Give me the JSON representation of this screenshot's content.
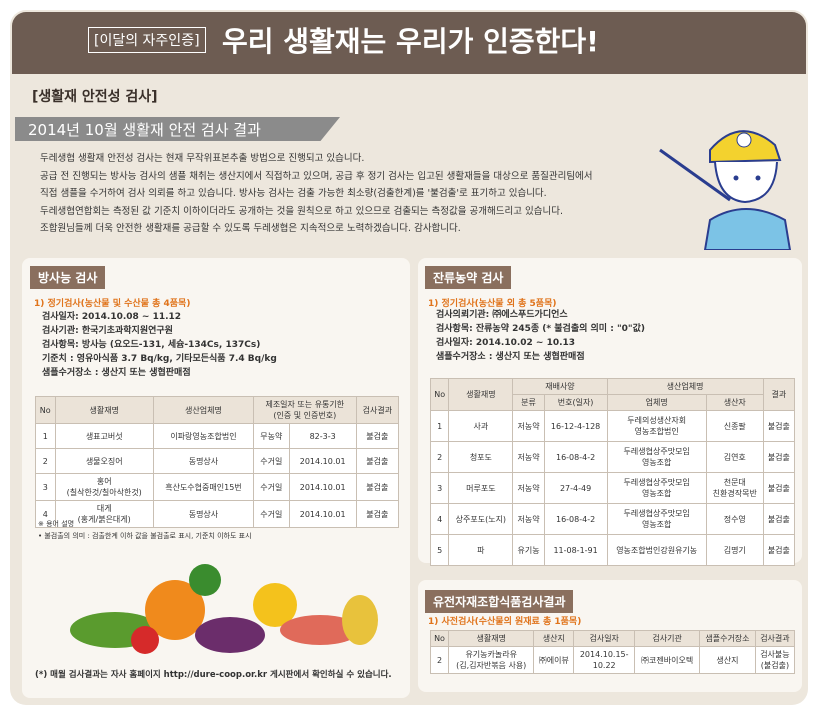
{
  "header": {
    "tag": "[이달의 자주인증]",
    "title": "우리 생활재는 우리가 인증한다!"
  },
  "section": {
    "label": "[생활재 안전성 검사]",
    "title": "2014년 10월 생활재 안전 검사 결과"
  },
  "intro": [
    "두레생협 생활재 안전성 검사는 현재 무작위표본추출 방법으로 진행되고 있습니다.",
    "공급 전 진행되는 방사능 검사의 샘플 채취는 생산지에서 직접하고 있으며, 공급 후 정기 검사는 입고된 생활재들을 대상으로 품질관리팀에서",
    "직접 샘플을 수거하여 검사 의뢰를 하고 있습니다. 방사능 검사는 검출 가능한 최소량(검출한계)를 '불검출'로 표기하고 있습니다.",
    "두레생협연합회는 측정된 값 기준치 이하이더라도 공개하는 것을 원칙으로 하고 있으므로 검출되는 측정값을 공개해드리고 있습니다.",
    "조합원님들께 더욱 안전한 생활재를 공급할 수 있도록 두레생협은 지속적으로 노력하겠습니다. 감사합니다."
  ],
  "radiation": {
    "label": "방사능 검사",
    "subtitle": "1) 정기검사(농산물 및 수산물 총 4품목)",
    "info": [
      "검사일자: 2014.10.08 ~ 11.12",
      "검사기관: 한국기초과학지원연구원",
      "검사항목: 방사능 (요오드-131, 세슘-134Cs, 137Cs)",
      "기준치 : 영유아식품 3.7 Bq/kg, 기타모든식품 7.4 Bq/kg",
      "샘플수거장소 : 생산지 또는 생협판매점"
    ],
    "table": {
      "header": [
        "No",
        "생활재명",
        "생산업체명",
        "제조일자 또는 유통기한\n(인증 및 인증번호)",
        "검사결과"
      ],
      "rows": [
        [
          "1",
          "생표고버섯",
          "이파랑영농조합법인",
          "무농약",
          "82-3-3",
          "불검출"
        ],
        [
          "2",
          "생물오징어",
          "동명상사",
          "수거일",
          "2014.10.01",
          "불검출"
        ],
        [
          "3",
          "홍어\n(칠삭한것/칠아삭한것)",
          "흑산도수협중매인15번",
          "수거일",
          "2014.10.01",
          "불검출"
        ],
        [
          "4",
          "대게\n(홍게/붉은대게)",
          "동명상사",
          "수거일",
          "2014.10.01",
          "불검출"
        ]
      ]
    },
    "notes": [
      "※ 용어 설명",
      "• 불검출의 의미 : 검출한계 이하 값을 불검출로 표시, 기준치 이하도 표시"
    ]
  },
  "pesticide": {
    "label": "잔류농약 검사",
    "subtitle": "1) 정기검사(농산물 외 총 5품목)",
    "info": [
      "검사의뢰기관: ㈜에스푸드가디언스",
      "검사항목: 잔류농약 245종 (* 불검출의 의미 : \"0\"값)",
      "검사일자: 2014.10.02 ~ 10.13",
      "샘플수거장소 : 생산지 또는 생협판매점"
    ],
    "table": {
      "header_top": [
        "No",
        "생활재명",
        "재배사양",
        "생산업체명",
        "결과"
      ],
      "header_sub": [
        "분류",
        "번호(일자)",
        "업체명",
        "생산자"
      ],
      "rows": [
        [
          "1",
          "사과",
          "저농약",
          "16-12-4-128",
          "두레의성생산자회\n영농조합법인",
          "신종팔",
          "불검출"
        ],
        [
          "2",
          "청포도",
          "저농약",
          "16-08-4-2",
          "두레생협상주맛모임\n영농조합",
          "김연호",
          "불검출"
        ],
        [
          "3",
          "머루포도",
          "저농약",
          "27-4-49",
          "두레생협상주맛모임\n영농조합",
          "천문대\n친환경작목반",
          "불검출"
        ],
        [
          "4",
          "상주포도(노지)",
          "저농약",
          "16-08-4-2",
          "두레생협상주맛모임\n영농조합",
          "정수영",
          "불검출"
        ],
        [
          "5",
          "파",
          "유기농",
          "11-08-1-91",
          "영농조합법인강원유기농",
          "김명기",
          "불검출"
        ]
      ]
    }
  },
  "gmo": {
    "label": "유전자재조합식품검사결과",
    "subtitle": "1) 사전검사(수산물의 원재료 총 1품목)",
    "table": {
      "header": [
        "No",
        "생활재명",
        "생산지",
        "검사일자",
        "검사기관",
        "샘플수거장소",
        "검사결과"
      ],
      "rows": [
        [
          "2",
          "유기농카놀라유\n(김,김자반볶음 사용)",
          "㈜에이뷰",
          "2014.10.15-\n10.22",
          "㈜코젠바이오텍",
          "생산지",
          "검사불능\n(불검출)"
        ]
      ]
    }
  },
  "footer": "(*) 매월 검사결과는 자사 홈페이지 http://dure-coop.or.kr 게시판에서 확인하실 수 있습니다."
}
